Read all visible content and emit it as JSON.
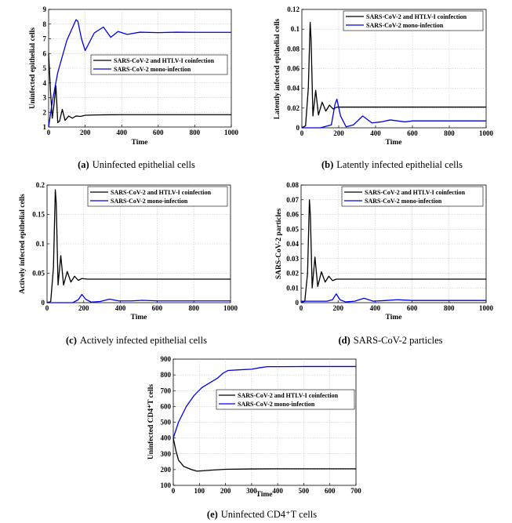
{
  "colors": {
    "coinfection": "#000000",
    "mono": "#0000e6"
  },
  "legend": {
    "coinfection": "SARS-CoV-2 and HTLV-I coinfection",
    "mono": "SARS-CoV-2 mono-infection"
  },
  "chart_data": [
    {
      "id": "a",
      "type": "line",
      "caption_letter": "(a)",
      "caption": "Uninfected epithelial cells",
      "xlabel": "Time",
      "ylabel": "Uninfected epithelial cells",
      "xlim": [
        0,
        1000
      ],
      "ylim": [
        1,
        9
      ],
      "xticks": [
        "0",
        "200",
        "400",
        "600",
        "800",
        "1000"
      ],
      "yticks": [
        "1",
        "2",
        "3",
        "4",
        "5",
        "6",
        "7",
        "8",
        "9"
      ],
      "series": [
        {
          "name": "SARS-CoV-2 and HTLV-I coinfection",
          "x": [
            0,
            10,
            20,
            30,
            40,
            50,
            60,
            75,
            90,
            110,
            130,
            150,
            175,
            200,
            250,
            300,
            400,
            600,
            1000
          ],
          "y": [
            6.0,
            3.5,
            1.6,
            2.6,
            3.8,
            1.3,
            1.4,
            2.2,
            1.45,
            1.75,
            1.6,
            1.75,
            1.72,
            1.8,
            1.82,
            1.83,
            1.84,
            1.84,
            1.84
          ]
        },
        {
          "name": "SARS-CoV-2 mono-infection",
          "x": [
            0,
            20,
            50,
            100,
            150,
            160,
            180,
            200,
            250,
            300,
            340,
            380,
            430,
            500,
            600,
            700,
            800,
            1000
          ],
          "y": [
            1.0,
            2.7,
            4.7,
            6.9,
            8.3,
            8.2,
            7.0,
            6.2,
            7.4,
            7.8,
            7.1,
            7.5,
            7.3,
            7.45,
            7.42,
            7.45,
            7.44,
            7.44
          ]
        }
      ]
    },
    {
      "id": "b",
      "type": "line",
      "caption_letter": "(b)",
      "caption": "Latently infected epithelial cells",
      "xlabel": "Time",
      "ylabel": "Latently infected epithelial cells",
      "xlim": [
        0,
        1000
      ],
      "ylim": [
        0,
        0.12
      ],
      "xticks": [
        "0",
        "200",
        "400",
        "600",
        "800",
        "1000"
      ],
      "yticks": [
        "0",
        "0.02",
        "0.04",
        "0.06",
        "0.08",
        "0.1",
        "0.12"
      ],
      "series": [
        {
          "name": "SARS-CoV-2 and HTLV-I coinfection",
          "x": [
            0,
            20,
            35,
            45,
            50,
            60,
            75,
            90,
            110,
            130,
            150,
            170,
            190,
            220,
            300,
            600,
            1000
          ],
          "y": [
            0,
            0.002,
            0.04,
            0.107,
            0.09,
            0.012,
            0.038,
            0.013,
            0.026,
            0.017,
            0.023,
            0.019,
            0.021,
            0.021,
            0.021,
            0.021,
            0.021
          ]
        },
        {
          "name": "SARS-CoV-2 mono-infection",
          "x": [
            0,
            100,
            160,
            180,
            190,
            210,
            240,
            280,
            330,
            380,
            430,
            480,
            560,
            600,
            800,
            1000
          ],
          "y": [
            0,
            0,
            0.003,
            0.024,
            0.029,
            0.012,
            0.001,
            0.003,
            0.012,
            0.005,
            0.006,
            0.008,
            0.006,
            0.007,
            0.007,
            0.007
          ]
        }
      ]
    },
    {
      "id": "c",
      "type": "line",
      "caption_letter": "(c)",
      "caption": "Actively infected epithelial cells",
      "xlabel": "Time",
      "ylabel": "Actively infected epithelial cells",
      "xlim": [
        0,
        1000
      ],
      "ylim": [
        0,
        0.2
      ],
      "xticks": [
        "0",
        "200",
        "400",
        "600",
        "800",
        "1000"
      ],
      "yticks": [
        "0",
        "0.05",
        "0.1",
        "0.15",
        "0.2"
      ],
      "series": [
        {
          "name": "SARS-CoV-2 and HTLV-I coinfection",
          "x": [
            0,
            20,
            35,
            45,
            50,
            60,
            75,
            90,
            110,
            130,
            150,
            170,
            190,
            220,
            300,
            600,
            1000
          ],
          "y": [
            0,
            0.002,
            0.06,
            0.192,
            0.17,
            0.03,
            0.08,
            0.03,
            0.053,
            0.035,
            0.045,
            0.038,
            0.041,
            0.04,
            0.04,
            0.04,
            0.04
          ]
        },
        {
          "name": "SARS-CoV-2 mono-infection",
          "x": [
            0,
            140,
            170,
            190,
            210,
            240,
            290,
            340,
            390,
            460,
            520,
            600,
            800,
            1000
          ],
          "y": [
            0,
            0,
            0.005,
            0.014,
            0.006,
            0.001,
            0.002,
            0.006,
            0.003,
            0.003,
            0.004,
            0.003,
            0.003,
            0.003
          ]
        }
      ]
    },
    {
      "id": "d",
      "type": "line",
      "caption_letter": "(d)",
      "caption": "SARS-CoV-2 particles",
      "xlabel": "Time",
      "ylabel": "SARS-CoV-2 particles",
      "xlim": [
        0,
        1000
      ],
      "ylim": [
        0,
        0.08
      ],
      "xticks": [
        "0",
        "200",
        "400",
        "600",
        "800",
        "1000"
      ],
      "yticks": [
        "0",
        "0.01",
        "0.02",
        "0.03",
        "0.04",
        "0.05",
        "0.06",
        "0.07",
        "0.08"
      ],
      "series": [
        {
          "name": "SARS-CoV-2 and HTLV-I coinfection",
          "x": [
            0,
            20,
            35,
            45,
            50,
            60,
            75,
            90,
            110,
            130,
            150,
            170,
            190,
            220,
            300,
            600,
            1000
          ],
          "y": [
            0,
            0.001,
            0.02,
            0.07,
            0.06,
            0.01,
            0.031,
            0.011,
            0.021,
            0.014,
            0.018,
            0.015,
            0.016,
            0.016,
            0.016,
            0.016,
            0.016
          ]
        },
        {
          "name": "SARS-CoV-2 mono-infection",
          "x": [
            0,
            140,
            170,
            190,
            210,
            240,
            290,
            340,
            390,
            460,
            520,
            600,
            800,
            1000
          ],
          "y": [
            0.001,
            0.001,
            0.002,
            0.006,
            0.002,
            0.0005,
            0.001,
            0.003,
            0.001,
            0.0015,
            0.002,
            0.0015,
            0.0015,
            0.0015
          ]
        }
      ]
    },
    {
      "id": "e",
      "type": "line",
      "caption_letter": "(e)",
      "caption": "Uninfected CD4⁺T cells",
      "xlabel": "Time",
      "ylabel": "Uninfected CD4⁺T cells",
      "xlim": [
        0,
        700
      ],
      "ylim": [
        100,
        900
      ],
      "xticks": [
        "0",
        "100",
        "200",
        "300",
        "400",
        "500",
        "600",
        "700"
      ],
      "yticks": [
        "100",
        "200",
        "300",
        "400",
        "500",
        "600",
        "700",
        "800",
        "900"
      ],
      "series": [
        {
          "name": "SARS-CoV-2 and HTLV-I coinfection",
          "x": [
            0,
            10,
            20,
            40,
            55,
            70,
            90,
            110,
            150,
            200,
            300,
            400,
            700
          ],
          "y": [
            400,
            320,
            260,
            220,
            210,
            200,
            190,
            192,
            197,
            202,
            204,
            205,
            205
          ]
        },
        {
          "name": "SARS-CoV-2 mono-infection",
          "x": [
            0,
            20,
            50,
            80,
            110,
            140,
            170,
            190,
            210,
            250,
            300,
            330,
            360,
            400,
            500,
            700
          ],
          "y": [
            400,
            500,
            600,
            670,
            720,
            750,
            780,
            810,
            828,
            832,
            836,
            845,
            852,
            852,
            853,
            853
          ]
        }
      ]
    }
  ]
}
